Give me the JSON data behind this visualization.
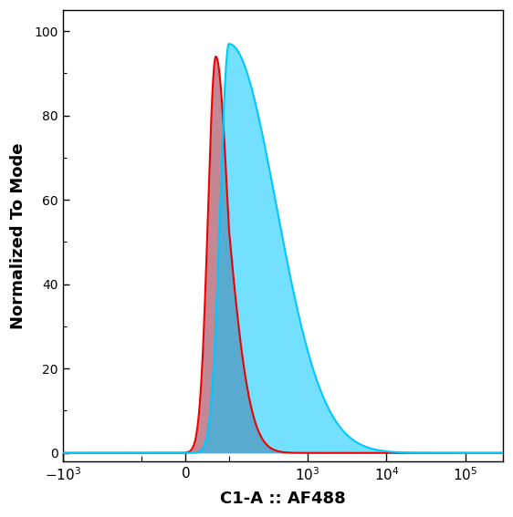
{
  "ylabel": "Normalized To Mode",
  "xlabel": "C1-A :: AF488",
  "xlim": [
    -1000,
    300000
  ],
  "ylim": [
    -2,
    105
  ],
  "yticks": [
    0,
    20,
    40,
    60,
    80,
    100
  ],
  "background_color": "#ffffff",
  "red_fill_color": "#b06070",
  "red_line_color": "#ee0000",
  "cyan_fill_color": "#00c8ff",
  "cyan_line_color": "#00c8ff",
  "linthresh": 100,
  "linscale": 0.5
}
